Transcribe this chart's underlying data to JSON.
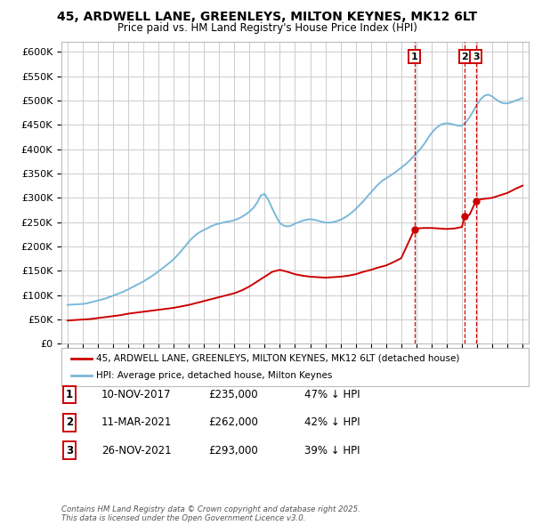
{
  "title_line1": "45, ARDWELL LANE, GREENLEYS, MILTON KEYNES, MK12 6LT",
  "title_line2": "Price paid vs. HM Land Registry's House Price Index (HPI)",
  "ylim": [
    0,
    620000
  ],
  "yticks": [
    0,
    50000,
    100000,
    150000,
    200000,
    250000,
    300000,
    350000,
    400000,
    450000,
    500000,
    550000,
    600000
  ],
  "ytick_labels": [
    "£0",
    "£50K",
    "£100K",
    "£150K",
    "£200K",
    "£250K",
    "£300K",
    "£350K",
    "£400K",
    "£450K",
    "£500K",
    "£550K",
    "£600K"
  ],
  "xlim_start": 1994.6,
  "xlim_end": 2025.4,
  "background_color": "#ffffff",
  "grid_color": "#cccccc",
  "hpi_color": "#7ab8d9",
  "price_color": "#cc0000",
  "legend_label_price": "45, ARDWELL LANE, GREENLEYS, MILTON KEYNES, MK12 6LT (detached house)",
  "legend_label_hpi": "HPI: Average price, detached house, Milton Keynes",
  "annotations": [
    {
      "year": 2017.87,
      "price": 235000,
      "label": "1"
    },
    {
      "year": 2021.19,
      "price": 262000,
      "label": "2"
    },
    {
      "year": 2021.92,
      "price": 293000,
      "label": "3"
    }
  ],
  "table_rows": [
    {
      "num": "1",
      "date": "10-NOV-2017",
      "price": "£235,000",
      "hpi": "47% ↓ HPI"
    },
    {
      "num": "2",
      "date": "11-MAR-2021",
      "price": "£262,000",
      "hpi": "42% ↓ HPI"
    },
    {
      "num": "3",
      "date": "26-NOV-2021",
      "price": "£293,000",
      "hpi": "39% ↓ HPI"
    }
  ],
  "footer": "Contains HM Land Registry data © Crown copyright and database right 2025.\nThis data is licensed under the Open Government Licence v3.0.",
  "hpi_x": [
    1995.0,
    1995.25,
    1995.5,
    1995.75,
    1996.0,
    1996.25,
    1996.5,
    1996.75,
    1997.0,
    1997.25,
    1997.5,
    1997.75,
    1998.0,
    1998.25,
    1998.5,
    1998.75,
    1999.0,
    1999.25,
    1999.5,
    1999.75,
    2000.0,
    2000.25,
    2000.5,
    2000.75,
    2001.0,
    2001.25,
    2001.5,
    2001.75,
    2002.0,
    2002.25,
    2002.5,
    2002.75,
    2003.0,
    2003.25,
    2003.5,
    2003.75,
    2004.0,
    2004.25,
    2004.5,
    2004.75,
    2005.0,
    2005.25,
    2005.5,
    2005.75,
    2006.0,
    2006.25,
    2006.5,
    2006.75,
    2007.0,
    2007.25,
    2007.5,
    2007.75,
    2008.0,
    2008.25,
    2008.5,
    2008.75,
    2009.0,
    2009.25,
    2009.5,
    2009.75,
    2010.0,
    2010.25,
    2010.5,
    2010.75,
    2011.0,
    2011.25,
    2011.5,
    2011.75,
    2012.0,
    2012.25,
    2012.5,
    2012.75,
    2013.0,
    2013.25,
    2013.5,
    2013.75,
    2014.0,
    2014.25,
    2014.5,
    2014.75,
    2015.0,
    2015.25,
    2015.5,
    2015.75,
    2016.0,
    2016.25,
    2016.5,
    2016.75,
    2017.0,
    2017.25,
    2017.5,
    2017.75,
    2018.0,
    2018.25,
    2018.5,
    2018.75,
    2019.0,
    2019.25,
    2019.5,
    2019.75,
    2020.0,
    2020.25,
    2020.5,
    2020.75,
    2021.0,
    2021.25,
    2021.5,
    2021.75,
    2022.0,
    2022.25,
    2022.5,
    2022.75,
    2023.0,
    2023.25,
    2023.5,
    2023.75,
    2024.0,
    2024.25,
    2024.5,
    2024.75,
    2025.0
  ],
  "hpi_y": [
    80000,
    80500,
    81000,
    81500,
    82000,
    83000,
    85000,
    87000,
    89000,
    91000,
    93000,
    96000,
    99000,
    102000,
    105000,
    108000,
    112000,
    116000,
    120000,
    124000,
    128000,
    133000,
    138000,
    143000,
    149000,
    155000,
    161000,
    167000,
    174000,
    182000,
    191000,
    200000,
    210000,
    218000,
    225000,
    230000,
    234000,
    238000,
    242000,
    245000,
    247000,
    249000,
    251000,
    252000,
    254000,
    257000,
    261000,
    266000,
    272000,
    279000,
    290000,
    305000,
    308000,
    295000,
    278000,
    262000,
    248000,
    243000,
    241000,
    243000,
    247000,
    250000,
    253000,
    255000,
    256000,
    255000,
    253000,
    251000,
    249000,
    249000,
    250000,
    252000,
    255000,
    259000,
    264000,
    270000,
    277000,
    285000,
    293000,
    302000,
    311000,
    320000,
    328000,
    335000,
    340000,
    345000,
    350000,
    356000,
    362000,
    368000,
    375000,
    383000,
    391000,
    400000,
    410000,
    422000,
    433000,
    442000,
    448000,
    452000,
    453000,
    452000,
    450000,
    448000,
    448000,
    455000,
    465000,
    478000,
    492000,
    503000,
    510000,
    512000,
    508000,
    502000,
    497000,
    494000,
    494000,
    496000,
    499000,
    502000,
    505000
  ],
  "price_x": [
    1995.0,
    1995.5,
    1996.0,
    1996.5,
    1997.0,
    1997.5,
    1998.0,
    1998.5,
    1999.0,
    1999.5,
    2000.0,
    2000.5,
    2001.0,
    2001.5,
    2002.0,
    2002.5,
    2003.0,
    2003.5,
    2004.0,
    2004.5,
    2005.0,
    2005.5,
    2006.0,
    2006.5,
    2007.0,
    2007.5,
    2008.0,
    2008.5,
    2009.0,
    2009.5,
    2010.0,
    2010.5,
    2011.0,
    2011.5,
    2012.0,
    2012.5,
    2013.0,
    2013.5,
    2014.0,
    2014.5,
    2015.0,
    2015.5,
    2016.0,
    2016.5,
    2017.0,
    2017.87,
    2018.0,
    2018.5,
    2019.0,
    2019.5,
    2020.0,
    2020.5,
    2021.0,
    2021.19,
    2021.5,
    2021.92,
    2022.0,
    2022.5,
    2023.0,
    2023.5,
    2024.0,
    2024.5,
    2025.0
  ],
  "price_y": [
    48000,
    49000,
    50000,
    51000,
    53000,
    55000,
    57000,
    59000,
    62000,
    64000,
    66000,
    68000,
    70000,
    72000,
    74000,
    77000,
    80000,
    84000,
    88000,
    92000,
    96000,
    100000,
    104000,
    110000,
    118000,
    128000,
    138000,
    148000,
    152000,
    148000,
    143000,
    140000,
    138000,
    137000,
    136000,
    137000,
    138000,
    140000,
    143000,
    148000,
    152000,
    157000,
    161000,
    168000,
    176000,
    235000,
    237000,
    238000,
    238000,
    237000,
    236000,
    237000,
    240000,
    262000,
    265000,
    293000,
    296000,
    298000,
    300000,
    305000,
    310000,
    318000,
    325000
  ]
}
